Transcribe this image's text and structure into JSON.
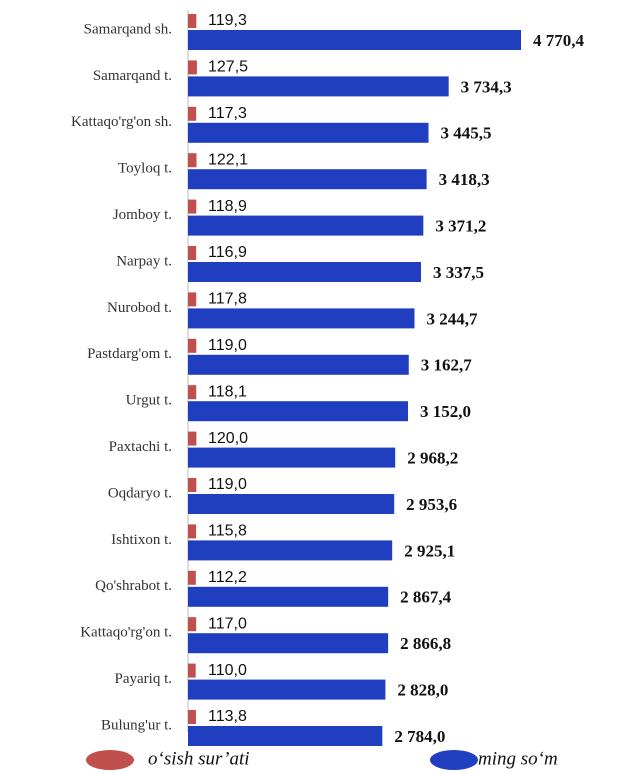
{
  "chart_data": {
    "type": "bar",
    "orientation": "horizontal",
    "categories": [
      "Samarqand sh.",
      "Samarqand t.",
      "Kattaqo'rg'on sh.",
      "Toyloq t.",
      "Jomboy t.",
      "Narpay t.",
      "Nurobod t.",
      "Pastdarg'om t.",
      "Urgut t.",
      "Paxtachi t.",
      "Oqdaryo t.",
      "Ishtixon t.",
      "Qo'shrabot t.",
      "Kattaqo'rg'on t.",
      "Payariq t.",
      "Bulung'ur t."
    ],
    "series": [
      {
        "name": "o‘sish sur’ati",
        "color": "#c0504d",
        "values": [
          119.3,
          127.5,
          117.3,
          122.1,
          118.9,
          116.9,
          117.8,
          119.0,
          118.1,
          120.0,
          119.0,
          115.8,
          112.2,
          117.0,
          110.0,
          113.8
        ],
        "value_labels": [
          "119,3",
          "127,5",
          "117,3",
          "122,1",
          "118,9",
          "116,9",
          "117,8",
          "119,0",
          "118,1",
          "120,0",
          "119,0",
          "115,8",
          "112,2",
          "117,0",
          "110,0",
          "113,8"
        ]
      },
      {
        "name": "ming so‘m",
        "color": "#1f3fc0",
        "values": [
          4770.4,
          3734.3,
          3445.5,
          3418.3,
          3371.2,
          3337.5,
          3244.7,
          3162.7,
          3152.0,
          2968.2,
          2953.6,
          2925.1,
          2867.4,
          2866.8,
          2828.0,
          2784.0
        ],
        "value_labels": [
          "4 770,4",
          "3 734,3",
          "3 445,5",
          "3 418,3",
          "3 371,2",
          "3 337,5",
          "3 244,7",
          "3 162,7",
          "3 152,0",
          "2 968,2",
          "2 953,6",
          "2 925,1",
          "2 867,4",
          "2 866,8",
          "2 828,0",
          "2 784,0"
        ]
      }
    ]
  }
}
